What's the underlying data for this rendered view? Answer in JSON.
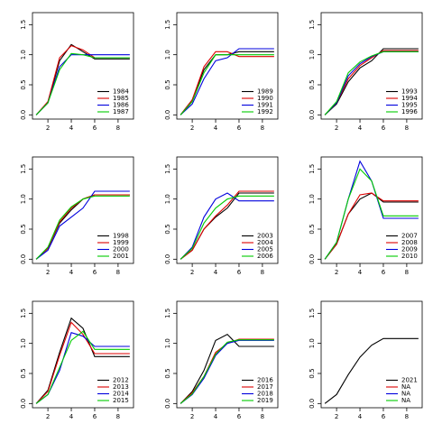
{
  "chart_data": [
    {
      "type": "line",
      "x": [
        1,
        2,
        3,
        4,
        5,
        6,
        7,
        8,
        9
      ],
      "xlim": [
        0.68,
        9.32
      ],
      "xticks": [
        2,
        4,
        6,
        8
      ],
      "ylim": [
        -0.07,
        1.7
      ],
      "yticks": [
        {
          "value": 0,
          "label": "0.0"
        },
        {
          "value": 0.5,
          "label": "0.5"
        },
        {
          "value": 1,
          "label": "1.0"
        },
        {
          "value": 1.5,
          "label": "1.5"
        }
      ],
      "legend": "bottom-right",
      "series": [
        {
          "name": "1984",
          "color": "#000000",
          "values": [
            0,
            0.2,
            0.9,
            1.17,
            1.05,
            0.93,
            0.93,
            0.93,
            0.93
          ]
        },
        {
          "name": "1985",
          "color": "#dd0000",
          "values": [
            0,
            0.22,
            0.95,
            1.15,
            1.08,
            0.95,
            0.95,
            0.95,
            0.95
          ]
        },
        {
          "name": "1986",
          "color": "#0000dd",
          "values": [
            0,
            0.2,
            0.8,
            1.0,
            1.0,
            1.0,
            1.0,
            1.0,
            1.0
          ]
        },
        {
          "name": "1987",
          "color": "#00cc00",
          "values": [
            0,
            0.2,
            0.75,
            1.02,
            1.0,
            0.95,
            0.95,
            0.95,
            0.95
          ]
        }
      ]
    },
    {
      "type": "line",
      "x": [
        1,
        2,
        3,
        4,
        5,
        6,
        7,
        8,
        9
      ],
      "xlim": [
        0.68,
        9.32
      ],
      "xticks": [
        2,
        4,
        6,
        8
      ],
      "ylim": [
        -0.07,
        1.7
      ],
      "yticks": [
        {
          "value": 0,
          "label": "0.0"
        },
        {
          "value": 0.5,
          "label": "0.5"
        },
        {
          "value": 1,
          "label": "1.0"
        },
        {
          "value": 1.5,
          "label": "1.5"
        }
      ],
      "legend": "bottom-right",
      "series": [
        {
          "name": "1989",
          "color": "#000000",
          "values": [
            0,
            0.25,
            0.75,
            1.0,
            1.0,
            1.05,
            1.05,
            1.05,
            1.05
          ]
        },
        {
          "name": "1990",
          "color": "#dd0000",
          "values": [
            0,
            0.25,
            0.8,
            1.05,
            1.05,
            0.97,
            0.97,
            0.97,
            0.97
          ]
        },
        {
          "name": "1991",
          "color": "#0000dd",
          "values": [
            0,
            0.18,
            0.6,
            0.9,
            0.95,
            1.1,
            1.1,
            1.1,
            1.1
          ]
        },
        {
          "name": "1992",
          "color": "#00cc00",
          "values": [
            0,
            0.22,
            0.7,
            1.0,
            1.0,
            1.0,
            1.0,
            1.0,
            1.0
          ]
        }
      ]
    },
    {
      "type": "line",
      "x": [
        1,
        2,
        3,
        4,
        5,
        6,
        7,
        8,
        9
      ],
      "xlim": [
        0.68,
        9.32
      ],
      "xticks": [
        2,
        4,
        6,
        8
      ],
      "ylim": [
        -0.07,
        1.7
      ],
      "yticks": [
        {
          "value": 0,
          "label": "0.0"
        },
        {
          "value": 0.5,
          "label": "0.5"
        },
        {
          "value": 1,
          "label": "1.0"
        },
        {
          "value": 1.5,
          "label": "1.5"
        }
      ],
      "legend": "bottom-right",
      "series": [
        {
          "name": "1993",
          "color": "#000000",
          "values": [
            0,
            0.18,
            0.55,
            0.78,
            0.9,
            1.1,
            1.1,
            1.1,
            1.1
          ]
        },
        {
          "name": "1994",
          "color": "#dd0000",
          "values": [
            0,
            0.2,
            0.6,
            0.82,
            0.95,
            1.07,
            1.07,
            1.07,
            1.07
          ]
        },
        {
          "name": "1995",
          "color": "#0000dd",
          "values": [
            0,
            0.2,
            0.65,
            0.85,
            0.97,
            1.05,
            1.05,
            1.05,
            1.05
          ]
        },
        {
          "name": "1996",
          "color": "#00cc00",
          "values": [
            0,
            0.22,
            0.7,
            0.88,
            0.98,
            1.05,
            1.05,
            1.05,
            1.05
          ]
        }
      ]
    },
    {
      "type": "line",
      "x": [
        1,
        2,
        3,
        4,
        5,
        6,
        7,
        8,
        9
      ],
      "xlim": [
        0.68,
        9.32
      ],
      "xticks": [
        2,
        4,
        6,
        8
      ],
      "ylim": [
        -0.07,
        1.7
      ],
      "yticks": [
        {
          "value": 0,
          "label": "0.0"
        },
        {
          "value": 0.5,
          "label": "0.5"
        },
        {
          "value": 1,
          "label": "1.0"
        },
        {
          "value": 1.5,
          "label": "1.5"
        }
      ],
      "legend": "bottom-right",
      "series": [
        {
          "name": "1998",
          "color": "#000000",
          "values": [
            0,
            0.18,
            0.6,
            0.82,
            1.0,
            1.07,
            1.07,
            1.07,
            1.07
          ]
        },
        {
          "name": "1999",
          "color": "#dd0000",
          "values": [
            0,
            0.18,
            0.62,
            0.85,
            1.0,
            1.07,
            1.07,
            1.07,
            1.07
          ]
        },
        {
          "name": "2000",
          "color": "#0000dd",
          "values": [
            0,
            0.15,
            0.55,
            0.7,
            0.85,
            1.13,
            1.13,
            1.13,
            1.13
          ]
        },
        {
          "name": "2001",
          "color": "#00cc00",
          "values": [
            0,
            0.2,
            0.65,
            0.87,
            1.0,
            1.05,
            1.05,
            1.05,
            1.05
          ]
        }
      ]
    },
    {
      "type": "line",
      "x": [
        1,
        2,
        3,
        4,
        5,
        6,
        7,
        8,
        9
      ],
      "xlim": [
        0.68,
        9.32
      ],
      "xticks": [
        2,
        4,
        6,
        8
      ],
      "ylim": [
        -0.07,
        1.7
      ],
      "yticks": [
        {
          "value": 0,
          "label": "0.0"
        },
        {
          "value": 0.5,
          "label": "0.5"
        },
        {
          "value": 1,
          "label": "1.0"
        },
        {
          "value": 1.5,
          "label": "1.5"
        }
      ],
      "legend": "bottom-right",
      "series": [
        {
          "name": "2003",
          "color": "#000000",
          "values": [
            0,
            0.15,
            0.5,
            0.7,
            0.85,
            1.1,
            1.1,
            1.1,
            1.1
          ]
        },
        {
          "name": "2004",
          "color": "#dd0000",
          "values": [
            0,
            0.15,
            0.5,
            0.72,
            0.9,
            1.13,
            1.13,
            1.13,
            1.13
          ]
        },
        {
          "name": "2005",
          "color": "#0000dd",
          "values": [
            0,
            0.2,
            0.7,
            1.0,
            1.1,
            0.97,
            0.97,
            0.97,
            0.97
          ]
        },
        {
          "name": "2006",
          "color": "#00cc00",
          "values": [
            0,
            0.18,
            0.6,
            0.85,
            1.0,
            1.05,
            1.05,
            1.05,
            1.05
          ]
        }
      ]
    },
    {
      "type": "line",
      "x": [
        1,
        2,
        3,
        4,
        5,
        6,
        7,
        8,
        9
      ],
      "xlim": [
        0.68,
        9.32
      ],
      "xticks": [
        2,
        4,
        6,
        8
      ],
      "ylim": [
        -0.07,
        1.7
      ],
      "yticks": [
        {
          "value": 0,
          "label": "0.0"
        },
        {
          "value": 0.5,
          "label": "0.5"
        },
        {
          "value": 1,
          "label": "1.0"
        },
        {
          "value": 1.5,
          "label": "1.5"
        }
      ],
      "legend": "bottom-right",
      "series": [
        {
          "name": "2007",
          "color": "#000000",
          "values": [
            0,
            0.25,
            0.75,
            1.0,
            1.1,
            0.95,
            0.95,
            0.95,
            0.95
          ]
        },
        {
          "name": "2008",
          "color": "#dd0000",
          "values": [
            0,
            0.25,
            0.75,
            1.07,
            1.1,
            0.97,
            0.97,
            0.97,
            0.97
          ]
        },
        {
          "name": "2009",
          "color": "#0000dd",
          "values": [
            0,
            0.28,
            1.0,
            1.63,
            1.3,
            0.68,
            0.68,
            0.68,
            0.68
          ]
        },
        {
          "name": "2010",
          "color": "#00cc00",
          "values": [
            0,
            0.28,
            1.0,
            1.5,
            1.3,
            0.72,
            0.72,
            0.72,
            0.72
          ]
        }
      ]
    },
    {
      "type": "line",
      "x": [
        1,
        2,
        3,
        4,
        5,
        6,
        7,
        8,
        9
      ],
      "xlim": [
        0.68,
        9.32
      ],
      "xticks": [
        2,
        4,
        6,
        8
      ],
      "ylim": [
        -0.07,
        1.7
      ],
      "yticks": [
        {
          "value": 0,
          "label": "0.0"
        },
        {
          "value": 0.5,
          "label": "0.5"
        },
        {
          "value": 1,
          "label": "1.0"
        },
        {
          "value": 1.5,
          "label": "1.5"
        }
      ],
      "legend": "bottom-right",
      "series": [
        {
          "name": "2012",
          "color": "#000000",
          "values": [
            0,
            0.22,
            0.85,
            1.42,
            1.25,
            0.78,
            0.78,
            0.78,
            0.78
          ]
        },
        {
          "name": "2013",
          "color": "#dd0000",
          "values": [
            0,
            0.2,
            0.8,
            1.35,
            1.15,
            0.83,
            0.83,
            0.83,
            0.83
          ]
        },
        {
          "name": "2014",
          "color": "#0000dd",
          "values": [
            0,
            0.15,
            0.55,
            1.18,
            1.12,
            0.95,
            0.95,
            0.95,
            0.95
          ]
        },
        {
          "name": "2015",
          "color": "#00cc00",
          "values": [
            0,
            0.15,
            0.6,
            1.05,
            1.2,
            0.9,
            0.9,
            0.9,
            0.9
          ]
        }
      ]
    },
    {
      "type": "line",
      "x": [
        1,
        2,
        3,
        4,
        5,
        6,
        7,
        8,
        9
      ],
      "xlim": [
        0.68,
        9.32
      ],
      "xticks": [
        2,
        4,
        6,
        8
      ],
      "ylim": [
        -0.07,
        1.7
      ],
      "yticks": [
        {
          "value": 0,
          "label": "0.0"
        },
        {
          "value": 0.5,
          "label": "0.5"
        },
        {
          "value": 1,
          "label": "1.0"
        },
        {
          "value": 1.5,
          "label": "1.5"
        }
      ],
      "legend": "bottom-right",
      "series": [
        {
          "name": "2016",
          "color": "#000000",
          "values": [
            0,
            0.2,
            0.55,
            1.05,
            1.15,
            0.95,
            0.95,
            0.95,
            0.95
          ]
        },
        {
          "name": "2017",
          "color": "#dd0000",
          "values": [
            0,
            0.18,
            0.45,
            0.85,
            1.0,
            1.07,
            1.07,
            1.07,
            1.07
          ]
        },
        {
          "name": "2018",
          "color": "#0000dd",
          "values": [
            0,
            0.15,
            0.42,
            0.8,
            1.0,
            1.05,
            1.05,
            1.05,
            1.05
          ]
        },
        {
          "name": "2019",
          "color": "#00cc00",
          "values": [
            0,
            0.16,
            0.45,
            0.82,
            1.02,
            1.06,
            1.06,
            1.06,
            1.06
          ]
        }
      ]
    },
    {
      "type": "line",
      "x": [
        1,
        2,
        3,
        4,
        5,
        6,
        7,
        8,
        9
      ],
      "xlim": [
        0.68,
        9.32
      ],
      "xticks": [
        2,
        4,
        6,
        8
      ],
      "ylim": [
        -0.07,
        1.7
      ],
      "yticks": [
        {
          "value": 0,
          "label": "0.0"
        },
        {
          "value": 0.5,
          "label": "0.5"
        },
        {
          "value": 1,
          "label": "1.0"
        },
        {
          "value": 1.5,
          "label": "1.5"
        }
      ],
      "legend": "bottom-right",
      "series": [
        {
          "name": "2021",
          "color": "#000000",
          "values": [
            0,
            0.15,
            0.48,
            0.77,
            0.97,
            1.08,
            1.08,
            1.08,
            1.08
          ]
        },
        {
          "name": "NA",
          "color": "#dd0000",
          "values": [
            null,
            null,
            null,
            null,
            null,
            null,
            null,
            null,
            null
          ]
        },
        {
          "name": "NA",
          "color": "#0000dd",
          "values": [
            null,
            null,
            null,
            null,
            null,
            null,
            null,
            null,
            null
          ]
        },
        {
          "name": "NA",
          "color": "#00cc00",
          "values": [
            null,
            null,
            null,
            null,
            null,
            null,
            null,
            null,
            null
          ]
        }
      ]
    }
  ]
}
